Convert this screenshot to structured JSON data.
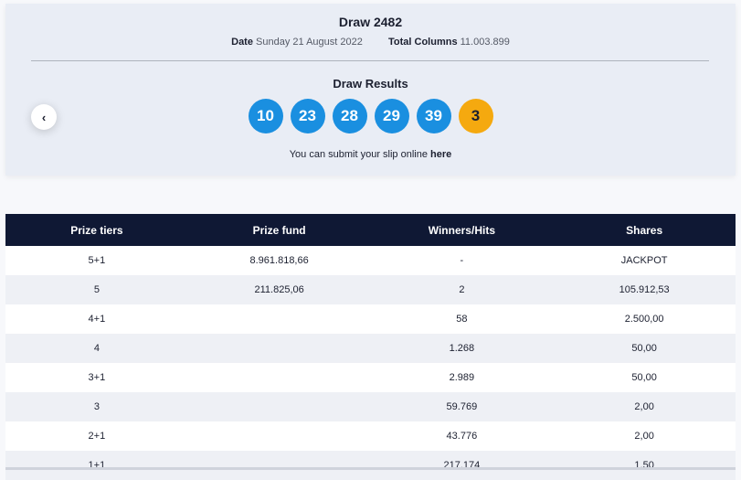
{
  "draw": {
    "title": "Draw 2482",
    "date_label": "Date",
    "date_value": "Sunday 21 August 2022",
    "columns_label": "Total Columns",
    "columns_value": "11.003.899",
    "results_title": "Draw Results",
    "numbers": [
      "10",
      "23",
      "28",
      "29",
      "39"
    ],
    "bonus_number": "3",
    "submit_text": "You can submit your slip online",
    "submit_link": "here",
    "prev_icon": "chevron-left-icon",
    "colors": {
      "ball": "#1a8fe0",
      "bonus_ball": "#f5a90f",
      "header_bg": "#0f1834"
    }
  },
  "table": {
    "headers": [
      "Prize tiers",
      "Prize fund",
      "Winners/Hits",
      "Shares"
    ],
    "rows": [
      [
        "5+1",
        "8.961.818,66",
        "-",
        "JACKPOT"
      ],
      [
        "5",
        "211.825,06",
        "2",
        "105.912,53"
      ],
      [
        "4+1",
        "",
        "58",
        "2.500,00"
      ],
      [
        "4",
        "",
        "1.268",
        "50,00"
      ],
      [
        "3+1",
        "",
        "2.989",
        "50,00"
      ],
      [
        "3",
        "",
        "59.769",
        "2,00"
      ],
      [
        "2+1",
        "",
        "43.776",
        "2,00"
      ],
      [
        "1+1",
        "",
        "217.174",
        "1,50"
      ]
    ]
  }
}
